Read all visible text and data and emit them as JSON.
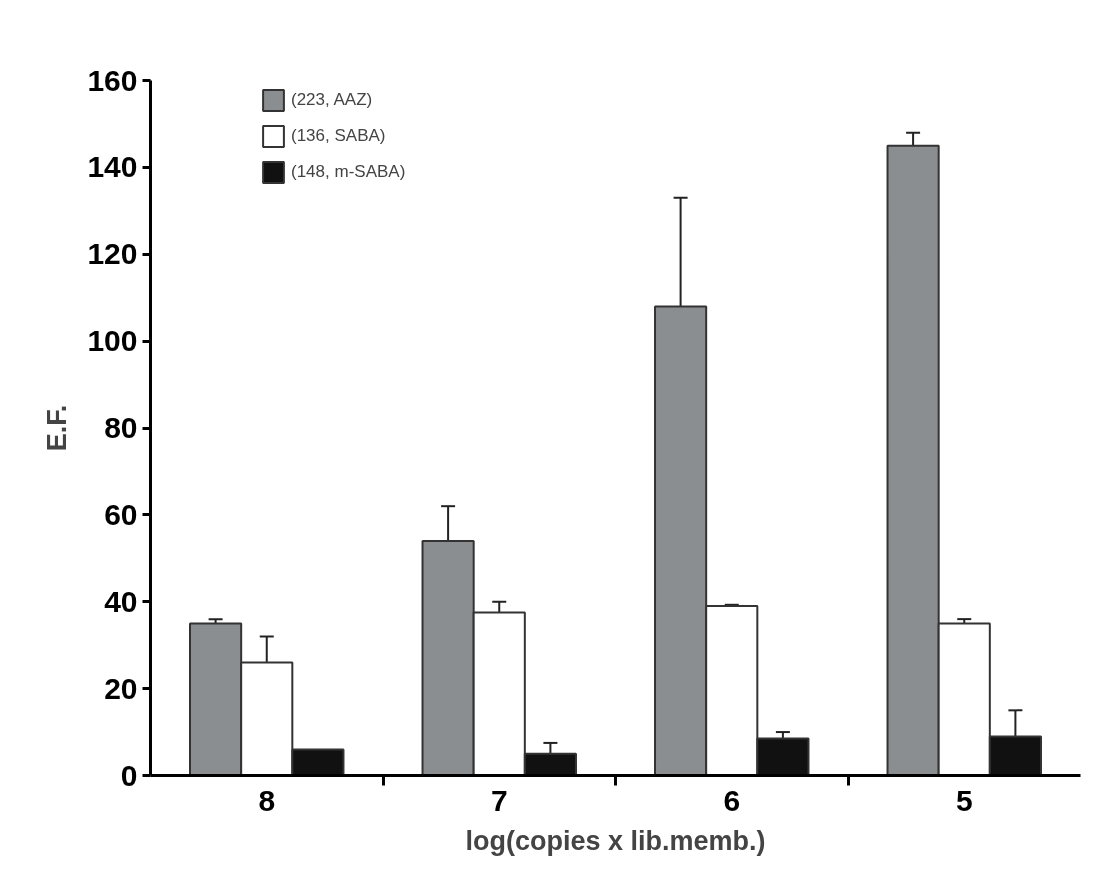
{
  "chart_data": {
    "type": "bar",
    "xlabel": "log(copies x lib.memb.)",
    "ylabel": "E.F.",
    "categories": [
      "8",
      "7",
      "6",
      "5"
    ],
    "series": [
      {
        "name": "(223, AAZ)",
        "color": "#8b8e90",
        "values": [
          35,
          54,
          108,
          145
        ],
        "errors": [
          1,
          8,
          25,
          3
        ]
      },
      {
        "name": "(136, SABA)",
        "color": "#ffffff",
        "values": [
          26,
          37.5,
          39,
          35
        ],
        "errors": [
          6,
          2.5,
          0.3,
          1
        ]
      },
      {
        "name": "(148, m-SABA)",
        "color": "#111111",
        "values": [
          6,
          5,
          8.5,
          9
        ],
        "errors": [
          null,
          2.5,
          1.5,
          6
        ]
      }
    ],
    "ylim": [
      0,
      160
    ],
    "yticks": [
      0,
      20,
      40,
      60,
      80,
      100,
      120,
      140,
      160
    ],
    "grid": false,
    "legend": "top left"
  }
}
